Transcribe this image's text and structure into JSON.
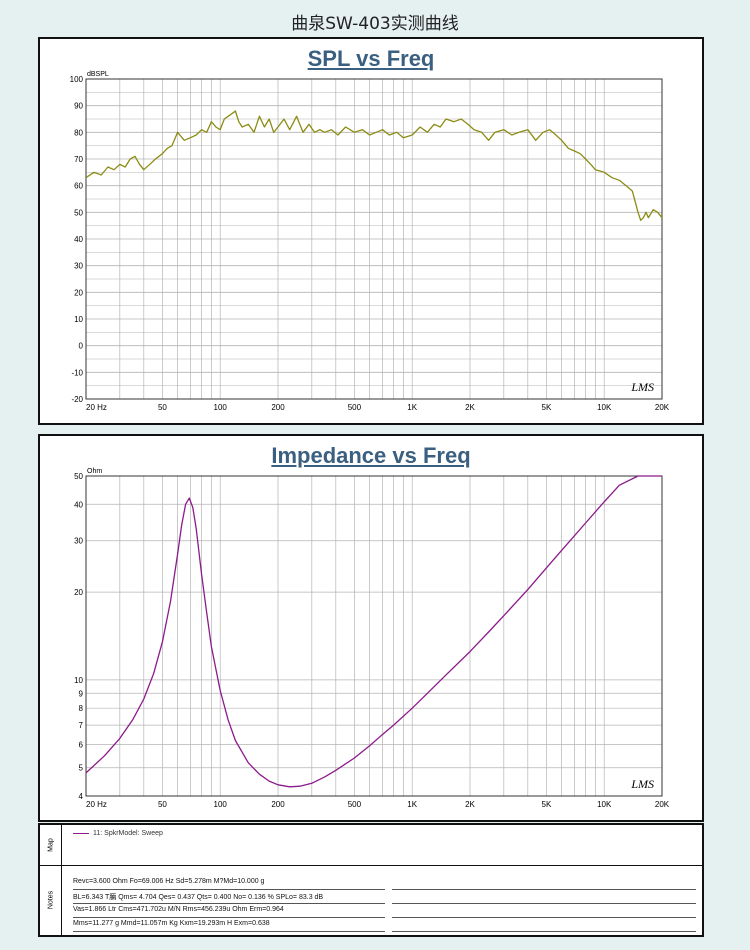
{
  "page_title": "曲泉SW-403实测曲线",
  "colors": {
    "spl_line": "#8c8c14",
    "imp_line": "#8b1a8b",
    "grid": "#b4b4b4",
    "title": "#3a5f80"
  },
  "chart_data": [
    {
      "type": "line",
      "title": "SPL vs Freq",
      "ylabel": "dBSPL",
      "xscale": "log",
      "grid": true,
      "xlim": [
        20,
        20000
      ],
      "ylim": [
        -20,
        100
      ],
      "x_ticks": [
        20,
        50,
        100,
        200,
        500,
        1000,
        2000,
        5000,
        10000,
        20000
      ],
      "x_tick_labels": [
        "20 Hz",
        "50",
        "100",
        "200",
        "500",
        "1K",
        "2K",
        "5K",
        "10K",
        "20K"
      ],
      "y_ticks": [
        -20,
        -10,
        0,
        10,
        20,
        30,
        40,
        50,
        60,
        70,
        80,
        90,
        100
      ],
      "y_tick_labels": [
        "-20",
        "-10",
        "0",
        "10",
        "20",
        "30",
        "40",
        "50",
        "60",
        "70",
        "80",
        "90",
        "100"
      ],
      "watermark": "LMS",
      "series": [
        {
          "x": [
            20,
            22,
            24,
            26,
            28,
            30,
            32,
            34,
            36,
            38,
            40,
            43,
            46,
            50,
            53,
            56,
            60,
            65,
            70,
            75,
            80,
            85,
            90,
            95,
            100,
            105,
            110,
            115,
            120,
            125,
            130,
            140,
            150,
            160,
            170,
            180,
            190,
            200,
            215,
            230,
            250,
            270,
            290,
            310,
            330,
            350,
            380,
            410,
            450,
            500,
            550,
            600,
            650,
            700,
            760,
            830,
            900,
            1000,
            1100,
            1200,
            1300,
            1400,
            1500,
            1650,
            1800,
            1950,
            2100,
            2300,
            2500,
            2700,
            3000,
            3300,
            3600,
            4000,
            4400,
            4800,
            5200,
            5600,
            6000,
            6500,
            7000,
            7500,
            8000,
            8500,
            9000,
            10000,
            11000,
            12000,
            13000,
            14000,
            14500,
            15000,
            15500,
            16000,
            16500,
            17000,
            18000,
            19000,
            20000
          ],
          "y": [
            63,
            65,
            64,
            67,
            66,
            68,
            67,
            70,
            71,
            68,
            66,
            68,
            70,
            72,
            74,
            75,
            80,
            77,
            78,
            79,
            81,
            80,
            84,
            82,
            81,
            85,
            86,
            87,
            88,
            84,
            82,
            83,
            80,
            86,
            82,
            85,
            80,
            82,
            85,
            81,
            86,
            80,
            83,
            80,
            81,
            80,
            81,
            79,
            82,
            80,
            81,
            79,
            80,
            81,
            79,
            80,
            78,
            79,
            82,
            80,
            83,
            82,
            85,
            84,
            85,
            83,
            81,
            80,
            77,
            80,
            81,
            79,
            80,
            81,
            77,
            80,
            81,
            79,
            77,
            74,
            73,
            72,
            70,
            68,
            66,
            65,
            63,
            62,
            60,
            58,
            54,
            50,
            47,
            48,
            50,
            48,
            51,
            50,
            48
          ]
        }
      ]
    },
    {
      "type": "line",
      "title": "Impedance vs Freq",
      "ylabel": "Ohm",
      "xscale": "log",
      "yscale": "log",
      "grid": true,
      "xlim": [
        20,
        20000
      ],
      "ylim": [
        4,
        50
      ],
      "x_ticks": [
        20,
        50,
        100,
        200,
        500,
        1000,
        2000,
        5000,
        10000,
        20000
      ],
      "x_tick_labels": [
        "20 Hz",
        "50",
        "100",
        "200",
        "500",
        "1K",
        "2K",
        "5K",
        "10K",
        "20K"
      ],
      "y_ticks": [
        4,
        5,
        6,
        7,
        8,
        9,
        10,
        20,
        30,
        40,
        50
      ],
      "y_tick_labels": [
        "4",
        "5",
        "6",
        "7",
        "8",
        "9",
        "10",
        "20",
        "30",
        "40",
        "50"
      ],
      "watermark": "LMS",
      "series": [
        {
          "name": "11: SpkrModel: Sweep",
          "x": [
            20,
            25,
            30,
            35,
            40,
            45,
            50,
            55,
            60,
            63,
            66,
            69,
            72,
            75,
            80,
            85,
            90,
            100,
            110,
            120,
            140,
            160,
            180,
            200,
            230,
            260,
            300,
            350,
            400,
            500,
            600,
            700,
            800,
            1000,
            1200,
            1500,
            2000,
            2500,
            3000,
            4000,
            5000,
            6000,
            8000,
            10000,
            12000,
            15000,
            20000
          ],
          "y": [
            4.8,
            5.5,
            6.3,
            7.3,
            8.6,
            10.5,
            13.5,
            18.5,
            27,
            34,
            40,
            42,
            39,
            33,
            23,
            17,
            13,
            9.2,
            7.3,
            6.2,
            5.2,
            4.75,
            4.5,
            4.37,
            4.3,
            4.32,
            4.42,
            4.65,
            4.9,
            5.4,
            5.95,
            6.5,
            7.0,
            8.0,
            9.0,
            10.4,
            12.5,
            14.6,
            16.6,
            20.4,
            24.2,
            27.8,
            34.5,
            40.8,
            46.5,
            50,
            50
          ]
        }
      ]
    }
  ],
  "bottom": {
    "map_label": "Map",
    "notes_label": "Notes",
    "legend_entry": "11: SpkrModel: Sweep",
    "notes": [
      "Revc=3.600 Ohm  Fo=69.006 Hz  Sd=5.278m M?Md=10.000 g",
      "BL=6.343 T脼  Qms= 4.704  Qes= 0.437  Qts= 0.400  No= 0.136 %  SPLo= 83.3 dB",
      "Vas=1.866 Ltr  Cms=471.702u M/N  Rms=456.239u Ohm  Erm=0.964",
      "Mms=11.277 g  Mmd=11.057m Kg  Kxm=19.293m H  Exm=0.638"
    ]
  }
}
